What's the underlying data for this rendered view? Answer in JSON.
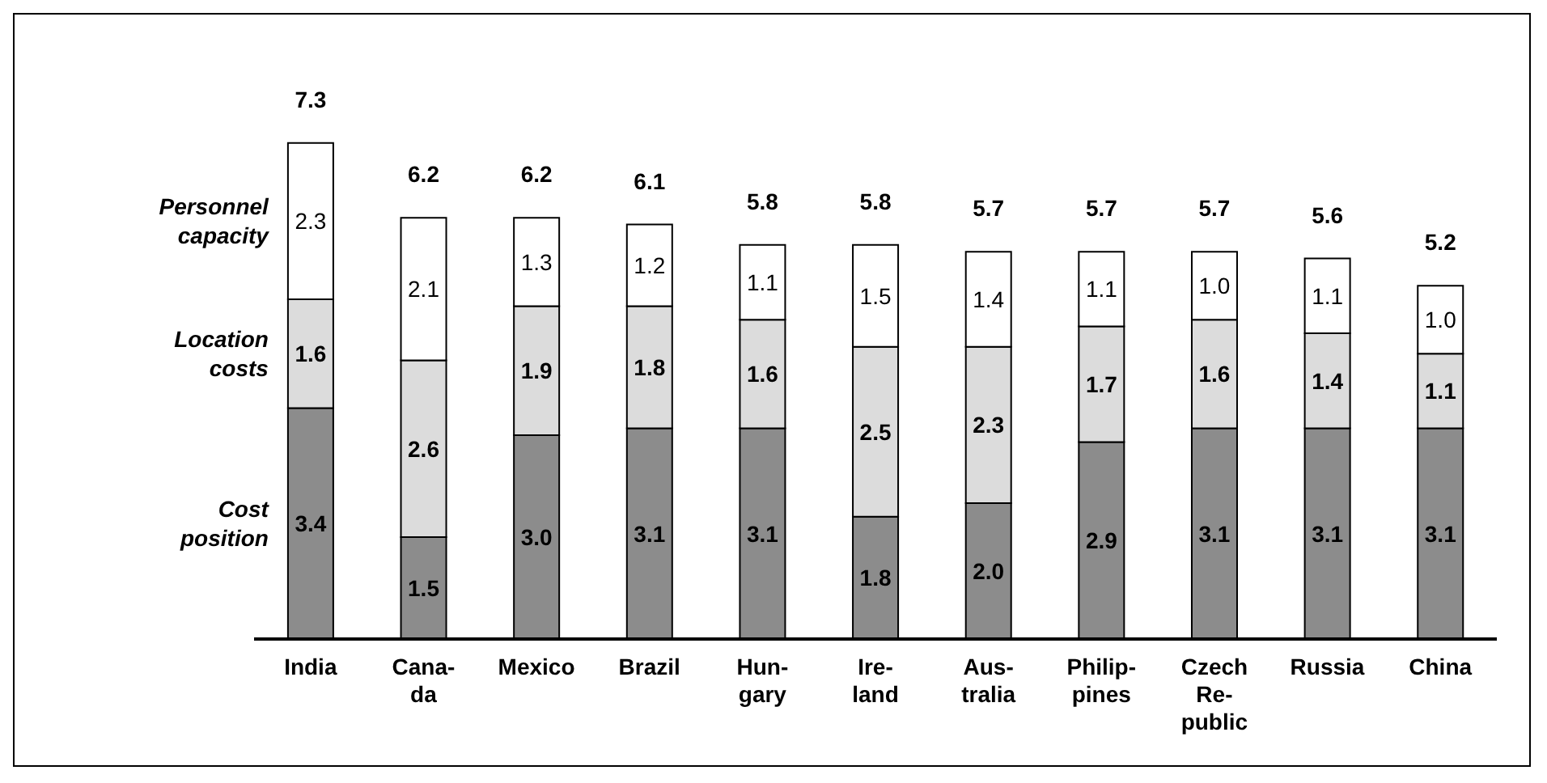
{
  "chart_data": {
    "type": "bar",
    "stacked": true,
    "categories": [
      "India",
      "Cana-\nda",
      "Mexico",
      "Brazil",
      "Hun-\ngary",
      "Ire-\nland",
      "Aus-\ntralia",
      "Philip-\npines",
      "Czech\nRe-\npublic",
      "Russia",
      "China"
    ],
    "series": [
      {
        "name": "Cost\nposition",
        "color": "#8c8c8c",
        "values": [
          3.4,
          1.5,
          3.0,
          3.1,
          3.1,
          1.8,
          2.0,
          2.9,
          3.1,
          3.1,
          3.1
        ],
        "value_labels": [
          "3.4",
          "1.5",
          "3.0",
          "3.1",
          "3.1",
          "1.8",
          "2.0",
          "2.9",
          "3.1",
          "3.1",
          "3.1"
        ]
      },
      {
        "name": "Location\ncosts",
        "color": "#dcdcdc",
        "values": [
          1.6,
          2.6,
          1.9,
          1.8,
          1.6,
          2.5,
          2.3,
          1.7,
          1.6,
          1.4,
          1.1
        ],
        "value_labels": [
          "1.6",
          "2.6",
          "1.9",
          "1.8",
          "1.6",
          "2.5",
          "2.3",
          "1.7",
          "1.6",
          "1.4",
          "1.1"
        ]
      },
      {
        "name": "Personnel\ncapacity",
        "color": "#ffffff",
        "values": [
          2.3,
          2.1,
          1.3,
          1.2,
          1.1,
          1.5,
          1.4,
          1.1,
          1.0,
          1.1,
          1.0
        ],
        "value_labels": [
          "2.3",
          "2.1",
          "1.3",
          "1.2",
          "1.1",
          "1.5",
          "1.4",
          "1.1",
          "1.0",
          "1.1",
          "1.0"
        ]
      }
    ],
    "totals": [
      "7.3",
      "6.2",
      "6.2",
      "6.1",
      "5.8",
      "5.8",
      "5.7",
      "5.7",
      "5.7",
      "5.6",
      "5.2"
    ]
  }
}
